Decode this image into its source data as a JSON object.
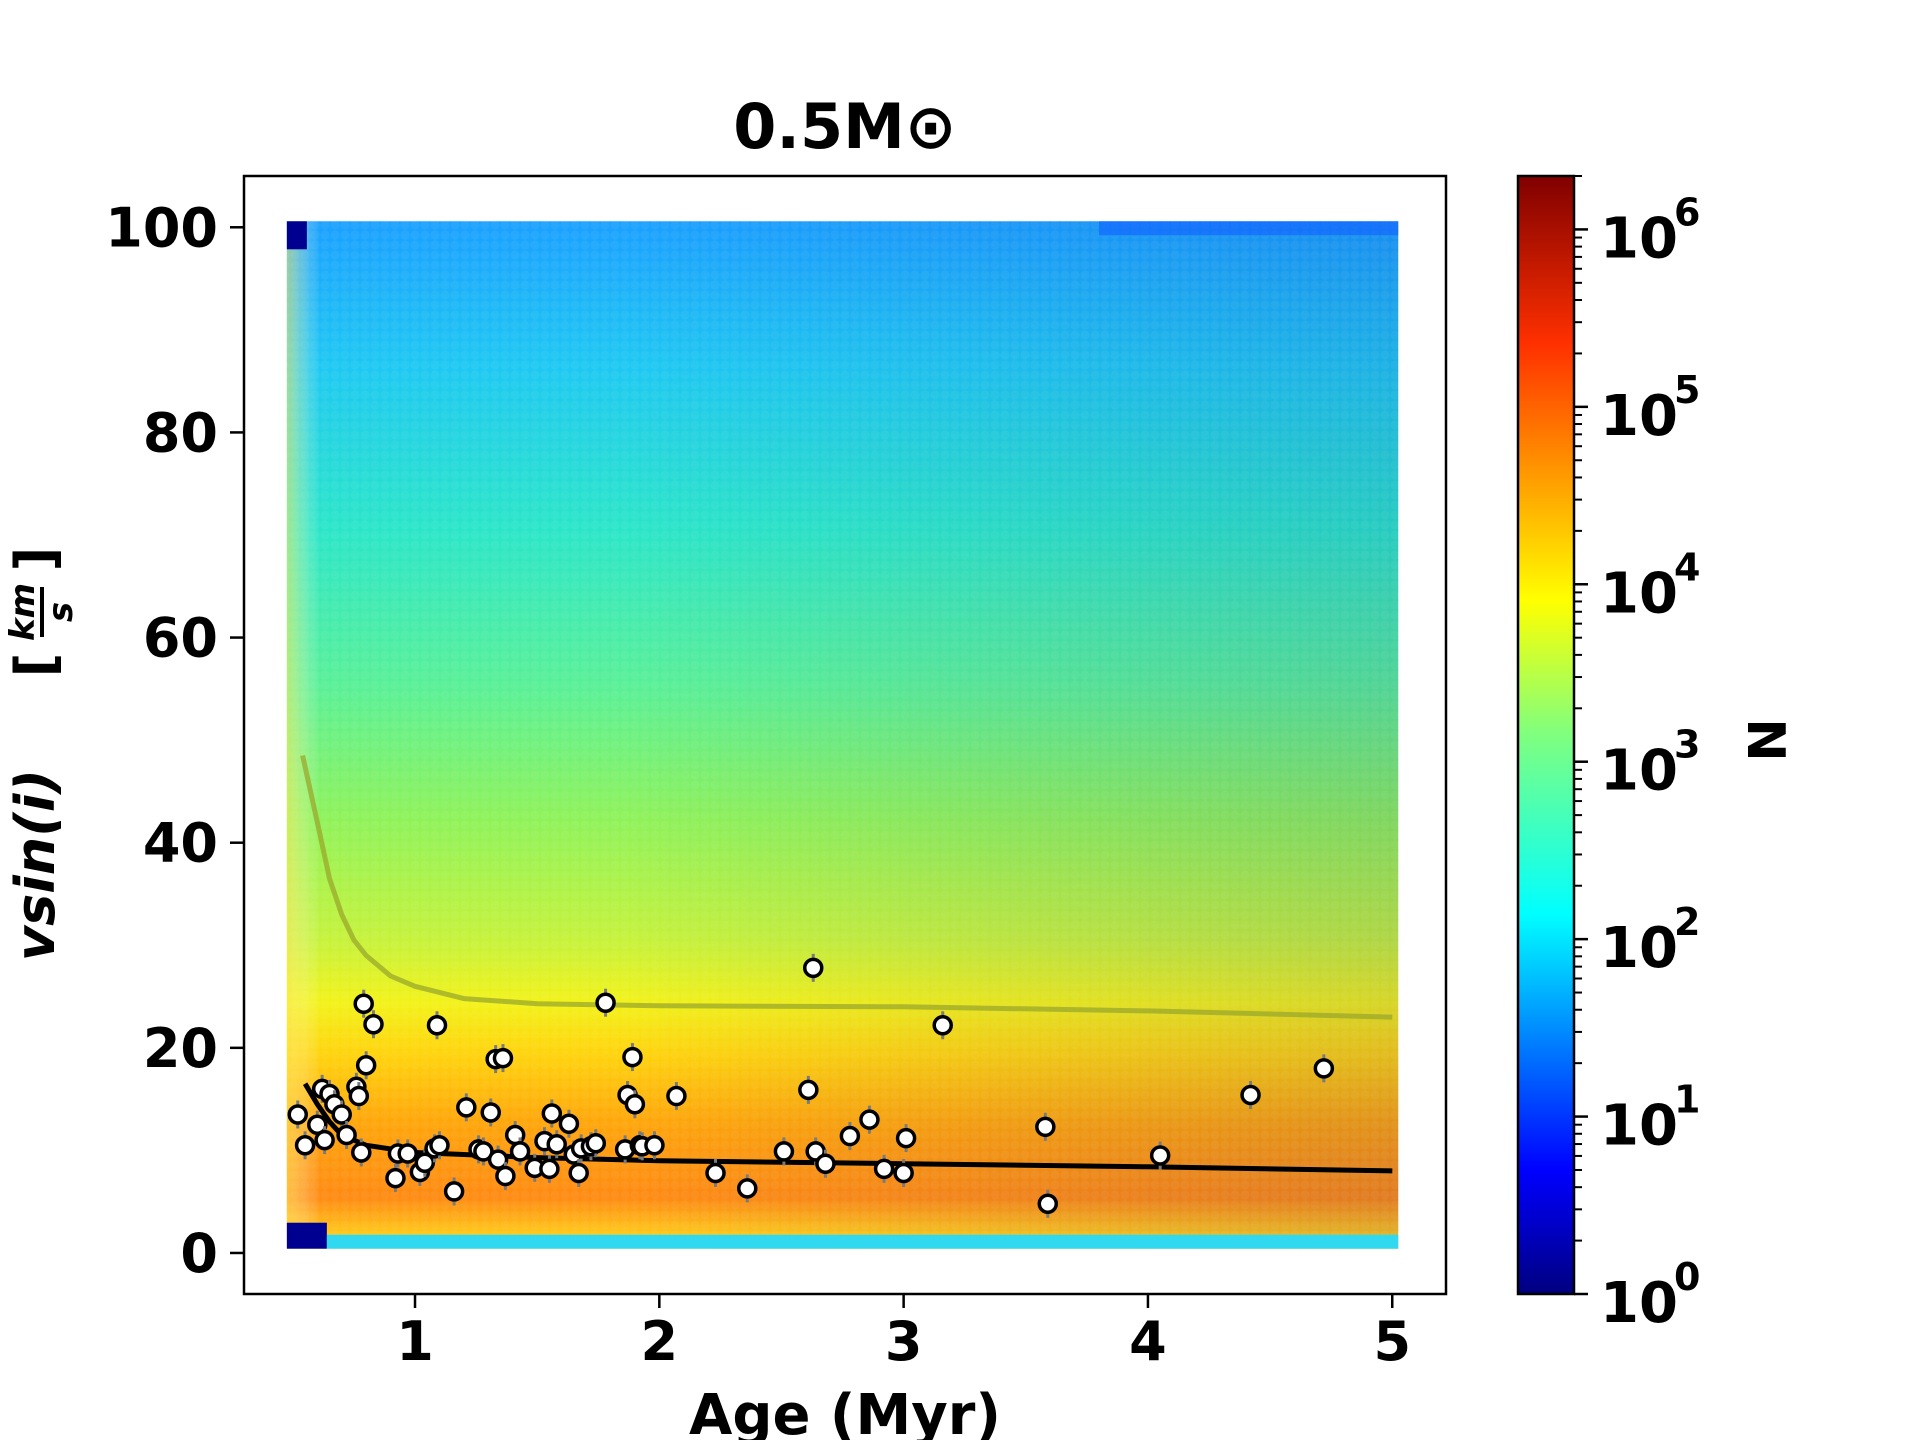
{
  "chart_data": {
    "type": "scatter",
    "title": "0.5M⊙",
    "xlabel": "Age (Myr)",
    "ylabel": "vsin(i)",
    "ylabel_units_num": "km",
    "ylabel_units_den": "s",
    "xlim": [
      0.3,
      5.22
    ],
    "ylim": [
      -4,
      105
    ],
    "xticks": [
      1,
      2,
      3,
      4,
      5
    ],
    "xtick_labels": [
      "1",
      "2",
      "3",
      "4",
      "5"
    ],
    "yticks": [
      0,
      20,
      40,
      60,
      80,
      100
    ],
    "ytick_labels": [
      "0",
      "20",
      "40",
      "60",
      "80",
      "100"
    ],
    "grid": false,
    "background": {
      "kind": "hexbin-density",
      "x_range": [
        0.5,
        5.0
      ],
      "y_range": [
        1,
        100
      ],
      "colormap": "jet",
      "log_scale": true
    },
    "colorbar": {
      "label": "N",
      "scale": "log",
      "range": [
        1,
        2000000
      ],
      "ticks": [
        1,
        10,
        100,
        1000,
        10000,
        100000,
        1000000
      ],
      "tick_base": "10",
      "tick_exponents": [
        "0",
        "1",
        "2",
        "3",
        "4",
        "5",
        "6"
      ]
    },
    "series": [
      {
        "kind": "curve",
        "color": "#9aa82a",
        "x": [
          0.54,
          0.6,
          0.65,
          0.7,
          0.75,
          0.8,
          0.9,
          1.0,
          1.2,
          1.5,
          2.0,
          3.0,
          4.0,
          5.0
        ],
        "y": [
          48.5,
          42,
          36.5,
          33,
          30.5,
          29,
          27,
          26,
          24.8,
          24.3,
          24.1,
          24.0,
          23.6,
          23.0
        ]
      },
      {
        "kind": "curve",
        "color": "#000000",
        "x": [
          0.55,
          0.6,
          0.65,
          0.7,
          0.8,
          1.0,
          1.5,
          2.0,
          3.0,
          4.0,
          5.0
        ],
        "y": [
          16.5,
          14.5,
          12.8,
          11.5,
          10.5,
          9.8,
          9.3,
          9.0,
          8.7,
          8.4,
          8.0
        ]
      },
      {
        "kind": "observations",
        "x": [
          0.52,
          0.55,
          0.6,
          0.62,
          0.63,
          0.65,
          0.67,
          0.7,
          0.72,
          0.76,
          0.77,
          0.78,
          0.79,
          0.8,
          0.83,
          0.92,
          0.93,
          0.97,
          1.02,
          1.04,
          1.08,
          1.09,
          1.1,
          1.16,
          1.21,
          1.26,
          1.28,
          1.31,
          1.33,
          1.34,
          1.36,
          1.37,
          1.41,
          1.43,
          1.49,
          1.53,
          1.55,
          1.56,
          1.58,
          1.63,
          1.65,
          1.67,
          1.68,
          1.72,
          1.74,
          1.78,
          1.86,
          1.87,
          1.89,
          1.9,
          1.92,
          1.93,
          1.98,
          2.07,
          2.23,
          2.36,
          2.51,
          2.61,
          2.63,
          2.64,
          2.68,
          2.78,
          2.86,
          2.92,
          3.0,
          3.01,
          3.16,
          3.58,
          3.59,
          4.05,
          4.42,
          4.72
        ],
        "y": [
          13.5,
          10.5,
          12.5,
          16,
          11,
          15.5,
          14.5,
          13.5,
          11.5,
          16.2,
          15.3,
          9.8,
          24.3,
          18.3,
          22.3,
          7.3,
          9.7,
          9.7,
          7.9,
          8.8,
          10.2,
          22.2,
          10.5,
          6.0,
          14.2,
          10.1,
          9.9,
          13.7,
          18.9,
          9.1,
          19.0,
          7.5,
          11.5,
          9.9,
          8.3,
          10.9,
          8.2,
          13.6,
          10.6,
          12.6,
          9.6,
          7.8,
          10.2,
          10.4,
          10.7,
          24.4,
          10.1,
          15.4,
          19.1,
          14.5,
          10.5,
          10.4,
          10.5,
          15.3,
          7.8,
          6.3,
          9.9,
          15.9,
          27.8,
          9.9,
          8.7,
          11.4,
          13.0,
          8.2,
          7.8,
          11.2,
          22.2,
          12.3,
          4.8,
          9.5,
          15.4,
          18.0
        ]
      }
    ]
  }
}
